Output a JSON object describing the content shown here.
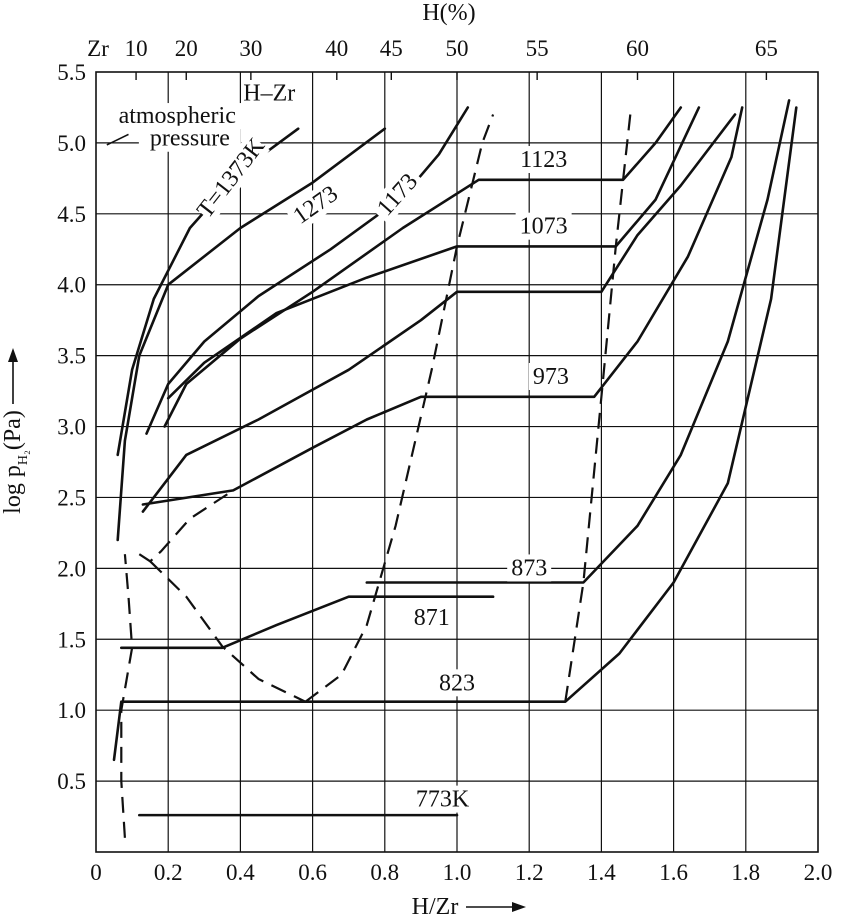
{
  "chart_data": {
    "type": "line",
    "title": "H–Zr",
    "top_axis_title": "H(%)",
    "xlabel": "H/Zr",
    "ylabel": {
      "main": "log p",
      "sub": "H₂",
      "unit": "(Pa)"
    },
    "xlim": [
      0,
      2.0
    ],
    "ylim": [
      0,
      5.5
    ],
    "grid": true,
    "x_ticks": [
      {
        "v": 0,
        "t": "0"
      },
      {
        "v": 0.2,
        "t": "0.2"
      },
      {
        "v": 0.4,
        "t": "0.4"
      },
      {
        "v": 0.6,
        "t": "0.6"
      },
      {
        "v": 0.8,
        "t": "0.8"
      },
      {
        "v": 1.0,
        "t": "1.0"
      },
      {
        "v": 1.2,
        "t": "1.2"
      },
      {
        "v": 1.4,
        "t": "1.4"
      },
      {
        "v": 1.6,
        "t": "1.6"
      },
      {
        "v": 1.8,
        "t": "1.8"
      },
      {
        "v": 2.0,
        "t": "2.0"
      }
    ],
    "y_ticks": [
      {
        "v": 0.5,
        "t": "0.5"
      },
      {
        "v": 1.0,
        "t": "1.0"
      },
      {
        "v": 1.5,
        "t": "1.5"
      },
      {
        "v": 2.0,
        "t": "2.0"
      },
      {
        "v": 2.5,
        "t": "2.5"
      },
      {
        "v": 3.0,
        "t": "3.0"
      },
      {
        "v": 3.5,
        "t": "3.5"
      },
      {
        "v": 4.0,
        "t": "4.0"
      },
      {
        "v": 4.5,
        "t": "4.5"
      },
      {
        "v": 5.0,
        "t": "5.0"
      },
      {
        "v": 5.5,
        "t": "5.5"
      }
    ],
    "top_ticks": [
      {
        "v": 0,
        "t": "Zr"
      },
      {
        "v": 0.111,
        "t": "10"
      },
      {
        "v": 0.25,
        "t": "20"
      },
      {
        "v": 0.429,
        "t": "30"
      },
      {
        "v": 0.667,
        "t": "40"
      },
      {
        "v": 0.818,
        "t": "45"
      },
      {
        "v": 1.0,
        "t": "50"
      },
      {
        "v": 1.222,
        "t": "55"
      },
      {
        "v": 1.5,
        "t": "60"
      },
      {
        "v": 1.857,
        "t": "65"
      }
    ],
    "series": [
      {
        "name": "T=1373K",
        "points": [
          [
            0.06,
            2.8
          ],
          [
            0.1,
            3.4
          ],
          [
            0.16,
            3.9
          ],
          [
            0.26,
            4.4
          ],
          [
            0.4,
            4.8
          ],
          [
            0.56,
            5.1
          ]
        ]
      },
      {
        "name": "1273",
        "points": [
          [
            0.06,
            2.2
          ],
          [
            0.08,
            2.9
          ],
          [
            0.12,
            3.5
          ],
          [
            0.2,
            4.0
          ],
          [
            0.4,
            4.4
          ],
          [
            0.6,
            4.72
          ],
          [
            0.8,
            5.1
          ]
        ]
      },
      {
        "name": "1173",
        "points": [
          [
            0.14,
            2.95
          ],
          [
            0.2,
            3.3
          ],
          [
            0.3,
            3.6
          ],
          [
            0.45,
            3.92
          ],
          [
            0.65,
            4.25
          ],
          [
            0.85,
            4.62
          ],
          [
            0.95,
            4.92
          ],
          [
            1.03,
            5.25
          ]
        ]
      },
      {
        "name": "1123",
        "points": [
          [
            0.19,
            3.0
          ],
          [
            0.25,
            3.3
          ],
          [
            0.4,
            3.62
          ],
          [
            0.6,
            3.95
          ],
          [
            0.85,
            4.4
          ],
          [
            1.06,
            4.74
          ],
          [
            1.46,
            4.74
          ],
          [
            1.55,
            5.0
          ],
          [
            1.62,
            5.25
          ]
        ]
      },
      {
        "name": "1073",
        "points": [
          [
            0.2,
            3.2
          ],
          [
            0.3,
            3.45
          ],
          [
            0.5,
            3.8
          ],
          [
            0.75,
            4.05
          ],
          [
            1.0,
            4.27
          ],
          [
            1.44,
            4.27
          ],
          [
            1.55,
            4.6
          ],
          [
            1.67,
            5.25
          ]
        ]
      },
      {
        "name": "973",
        "points": [
          [
            0.13,
            2.4
          ],
          [
            0.25,
            2.8
          ],
          [
            0.45,
            3.05
          ],
          [
            0.7,
            3.4
          ],
          [
            0.9,
            3.75
          ],
          [
            1.0,
            3.95
          ],
          [
            1.4,
            3.95
          ],
          [
            1.5,
            4.35
          ],
          [
            1.62,
            4.7
          ],
          [
            1.77,
            5.2
          ]
        ]
      },
      {
        "name": "873",
        "points": [
          [
            0.13,
            2.45
          ],
          [
            0.38,
            2.55
          ],
          [
            0.6,
            2.85
          ],
          [
            0.75,
            3.05
          ],
          [
            0.9,
            3.21
          ],
          [
            1.38,
            3.21
          ],
          [
            1.5,
            3.6
          ],
          [
            1.64,
            4.2
          ],
          [
            1.76,
            4.9
          ],
          [
            1.79,
            5.25
          ]
        ]
      },
      {
        "name": "871",
        "points": [
          [
            0.75,
            1.9
          ],
          [
            1.35,
            1.9
          ],
          [
            1.5,
            2.3
          ],
          [
            1.62,
            2.8
          ],
          [
            1.75,
            3.6
          ],
          [
            1.86,
            4.6
          ],
          [
            1.92,
            5.3
          ]
        ]
      },
      {
        "name": "823",
        "points": [
          [
            0.07,
            1.44
          ],
          [
            0.35,
            1.44
          ],
          [
            0.5,
            1.6
          ],
          [
            0.7,
            1.8
          ],
          [
            1.1,
            1.8
          ]
        ]
      },
      {
        "name": "773K",
        "points": [
          [
            0.05,
            0.65
          ],
          [
            0.07,
            1.06
          ],
          [
            1.3,
            1.06
          ],
          [
            1.45,
            1.4
          ],
          [
            1.6,
            1.9
          ],
          [
            1.75,
            2.6
          ],
          [
            1.87,
            3.9
          ],
          [
            1.94,
            5.25
          ]
        ]
      }
    ],
    "plateaus": [
      [
        0.12,
        0.26,
        1.0,
        0.26
      ]
    ],
    "dashed_boundaries": [
      {
        "name": "alpha-solvus",
        "points": [
          [
            0.08,
            0.1
          ],
          [
            0.07,
            0.5
          ],
          [
            0.07,
            1.0
          ],
          [
            0.1,
            1.44
          ],
          [
            0.09,
            1.8
          ],
          [
            0.08,
            2.1
          ]
        ]
      },
      {
        "name": "alpha-beta",
        "points": [
          [
            0.12,
            2.1
          ],
          [
            0.15,
            2.05
          ],
          [
            0.18,
            2.12
          ],
          [
            0.26,
            2.35
          ],
          [
            0.38,
            2.55
          ]
        ]
      },
      {
        "name": "beta-left",
        "points": [
          [
            0.15,
            2.05
          ],
          [
            0.25,
            1.8
          ],
          [
            0.35,
            1.45
          ],
          [
            0.45,
            1.22
          ],
          [
            0.58,
            1.06
          ]
        ]
      },
      {
        "name": "delta-left",
        "points": [
          [
            0.58,
            1.06
          ],
          [
            0.68,
            1.25
          ],
          [
            0.75,
            1.6
          ],
          [
            0.83,
            2.3
          ],
          [
            0.93,
            3.4
          ],
          [
            1.0,
            4.27
          ],
          [
            1.07,
            5.0
          ],
          [
            1.1,
            5.2
          ]
        ]
      },
      {
        "name": "delta-right",
        "points": [
          [
            1.3,
            1.06
          ],
          [
            1.35,
            1.9
          ],
          [
            1.4,
            3.21
          ],
          [
            1.44,
            4.27
          ],
          [
            1.46,
            4.74
          ],
          [
            1.48,
            5.2
          ]
        ]
      }
    ],
    "curve_labels": [
      {
        "text": "T=1373K",
        "x": 0.39,
        "y": 4.72,
        "rot": -52
      },
      {
        "text": "1273",
        "x": 0.62,
        "y": 4.52,
        "rot": -35
      },
      {
        "text": "1173",
        "x": 0.85,
        "y": 4.6,
        "rot": -48
      },
      {
        "text": "1123",
        "x": 1.24,
        "y": 4.83,
        "rot": 0
      },
      {
        "text": "1073",
        "x": 1.24,
        "y": 4.36,
        "rot": 0
      },
      {
        "text": "973",
        "x": 1.26,
        "y": 3.3,
        "rot": 0
      },
      {
        "text": "873",
        "x": 1.2,
        "y": 1.95,
        "rot": 0
      },
      {
        "text": "871",
        "x": 0.93,
        "y": 1.6,
        "rot": 0
      },
      {
        "text": "823",
        "x": 1.0,
        "y": 1.14,
        "rot": 0
      },
      {
        "text": "773K",
        "x": 0.96,
        "y": 0.32,
        "rot": 0
      }
    ],
    "annotations": [
      {
        "text": "atmospheric",
        "x": 0.225,
        "y": 5.14
      },
      {
        "text": "pressure",
        "x": 0.26,
        "y": 4.98
      },
      {
        "text": "H–Zr",
        "x": 0.48,
        "y": 5.3
      }
    ]
  }
}
